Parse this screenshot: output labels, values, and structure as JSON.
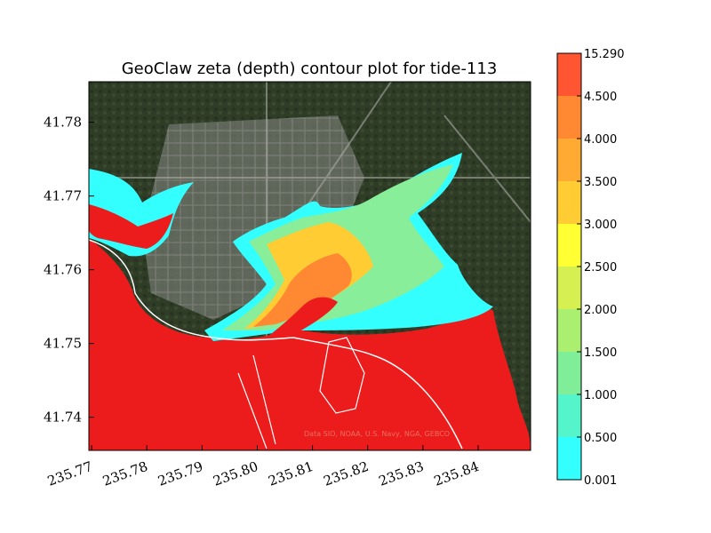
{
  "chart_data": {
    "type": "heatmap",
    "title": "GeoClaw zeta (depth) contour plot for tide-113",
    "xlabel": "",
    "ylabel": "",
    "xlim": [
      235.7695,
      235.8495
    ],
    "ylim": [
      41.7355,
      41.7855
    ],
    "xticks": [
      {
        "value": 235.77,
        "label": "235.77"
      },
      {
        "value": 235.78,
        "label": "235.78"
      },
      {
        "value": 235.79,
        "label": "235.79"
      },
      {
        "value": 235.8,
        "label": "235.80"
      },
      {
        "value": 235.81,
        "label": "235.81"
      },
      {
        "value": 235.82,
        "label": "235.82"
      },
      {
        "value": 235.83,
        "label": "235.83"
      },
      {
        "value": 235.84,
        "label": "235.84"
      }
    ],
    "yticks": [
      {
        "value": 41.74,
        "label": "41.74"
      },
      {
        "value": 41.75,
        "label": "41.75"
      },
      {
        "value": 41.76,
        "label": "41.76"
      },
      {
        "value": 41.77,
        "label": "41.77"
      },
      {
        "value": 41.78,
        "label": "41.78"
      }
    ],
    "colorbar": {
      "levels": [
        "0.001",
        "0.500",
        "1.000",
        "1.500",
        "2.000",
        "2.500",
        "3.000",
        "3.500",
        "4.000",
        "4.500",
        "15.290"
      ],
      "colors": [
        "#33ffff",
        "#55f5cc",
        "#80ee99",
        "#aaef70",
        "#d5f050",
        "#ffff33",
        "#ffcc33",
        "#ffaa33",
        "#ff8833",
        "#ff5533"
      ]
    },
    "background_colors": {
      "land": "#3f4a36",
      "urban": "#7d7f78",
      "forest": "#2c3a25"
    },
    "watermark": "Data SIO, NOAA, U.S. Navy, NGA, GEBCO"
  }
}
